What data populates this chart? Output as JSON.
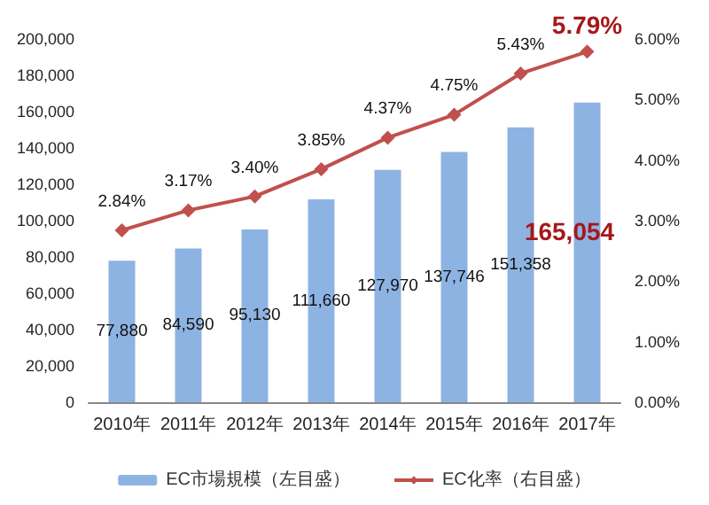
{
  "chart_data": {
    "type": "bar",
    "categories": [
      "2010年",
      "2011年",
      "2012年",
      "2013年",
      "2014年",
      "2015年",
      "2016年",
      "2017年"
    ],
    "series": [
      {
        "name": "EC市場規模（左目盛）",
        "color": "#8db3e2",
        "values": [
          77880,
          84590,
          95130,
          111660,
          127970,
          137746,
          151358,
          165054
        ],
        "value_labels": [
          "77,880",
          "84,590",
          "95,130",
          "111,660",
          "127,970",
          "137,746",
          "151,358",
          "165,054"
        ]
      },
      {
        "name": "EC化率（右目盛）",
        "type": "line",
        "axis": "y2",
        "color": "#c0504d",
        "values": [
          2.84,
          3.17,
          3.4,
          3.85,
          4.37,
          4.75,
          5.43,
          5.79
        ],
        "value_labels": [
          "2.84%",
          "3.17%",
          "3.40%",
          "3.85%",
          "4.37%",
          "4.75%",
          "5.43%",
          "5.79%"
        ]
      }
    ],
    "ylim": [
      0,
      200000
    ],
    "yticks": [
      {
        "value": 0,
        "label": "0"
      },
      {
        "value": 20000,
        "label": "20,000"
      },
      {
        "value": 40000,
        "label": "40,000"
      },
      {
        "value": 60000,
        "label": "60,000"
      },
      {
        "value": 80000,
        "label": "80,000"
      },
      {
        "value": 100000,
        "label": "100,000"
      },
      {
        "value": 120000,
        "label": "120,000"
      },
      {
        "value": 140000,
        "label": "140,000"
      },
      {
        "value": 160000,
        "label": "160,000"
      },
      {
        "value": 180000,
        "label": "180,000"
      },
      {
        "value": 200000,
        "label": "200,000"
      }
    ],
    "y2lim": [
      0,
      6
    ],
    "y2ticks": [
      {
        "value": 0,
        "label": "0.00%"
      },
      {
        "value": 1,
        "label": "1.00%"
      },
      {
        "value": 2,
        "label": "2.00%"
      },
      {
        "value": 3,
        "label": "3.00%"
      },
      {
        "value": 4,
        "label": "4.00%"
      },
      {
        "value": 5,
        "label": "5.00%"
      },
      {
        "value": 6,
        "label": "6.00%"
      }
    ],
    "marker": "diamond",
    "legend": "bottom",
    "grid": false
  }
}
